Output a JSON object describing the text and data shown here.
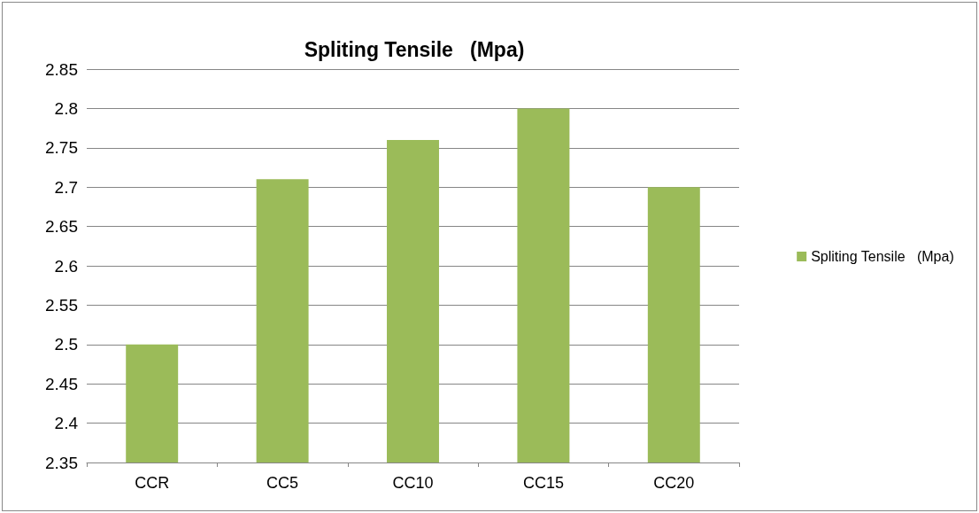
{
  "chart_data": {
    "type": "bar",
    "title": "Spliting Tensile   (Mpa)",
    "categories": [
      "CCR",
      "CC5",
      "CC10",
      "CC15",
      "CC20"
    ],
    "series": [
      {
        "name": "Spliting Tensile   (Mpa)",
        "color": "#9bbb59",
        "values": [
          2.5,
          2.71,
          2.76,
          2.8,
          2.7
        ]
      }
    ],
    "ylim": [
      2.35,
      2.85
    ],
    "yticks": [
      2.35,
      2.4,
      2.45,
      2.5,
      2.55,
      2.6,
      2.65,
      2.7,
      2.75,
      2.8,
      2.85
    ],
    "grid": "y",
    "legend": "right"
  }
}
